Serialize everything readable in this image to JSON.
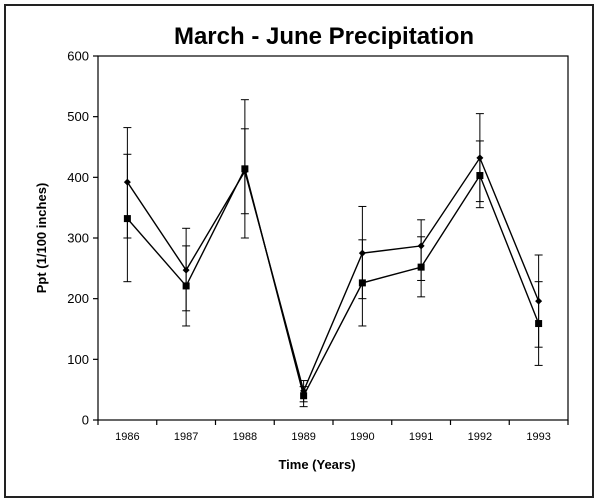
{
  "chart_data": {
    "type": "line",
    "title": "March - June Precipitation",
    "xlabel": "Time (Years)",
    "ylabel": "Ppt (1/100 inches)",
    "categories": [
      "1986",
      "1987",
      "1988",
      "1989",
      "1990",
      "1991",
      "1992",
      "1993"
    ],
    "ylim": [
      0,
      600
    ],
    "yticks": [
      0,
      100,
      200,
      300,
      400,
      500,
      600
    ],
    "grid": false,
    "legend": "none",
    "series": [
      {
        "marker": "diamond",
        "values": [
          392,
          247,
          410,
          48,
          275,
          287,
          432,
          196
        ],
        "err_low": [
          300,
          180,
          340,
          30,
          200,
          230,
          350,
          120
        ],
        "err_high": [
          482,
          316,
          528,
          65,
          352,
          330,
          505,
          272
        ]
      },
      {
        "marker": "square",
        "values": [
          332,
          221,
          414,
          40,
          226,
          252,
          403,
          159
        ],
        "err_low": [
          228,
          155,
          300,
          22,
          155,
          203,
          360,
          90
        ],
        "err_high": [
          438,
          287,
          480,
          55,
          297,
          302,
          460,
          228
        ]
      }
    ]
  },
  "colors": {
    "line": "#000000",
    "axis": "#000000"
  }
}
